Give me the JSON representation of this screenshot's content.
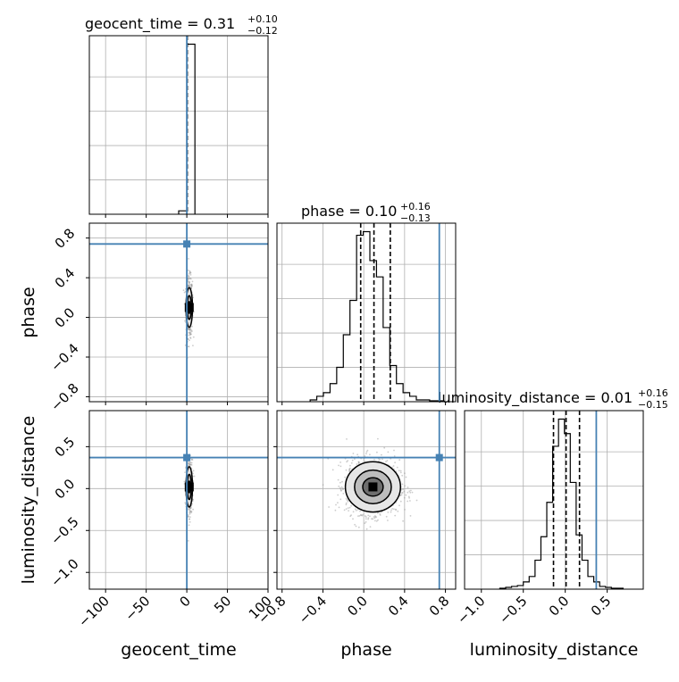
{
  "figure": {
    "panel_titles": {
      "geocent_time": {
        "prefix": "geocent_time = ",
        "value": "0.31",
        "plus": "+0.10",
        "minus": "−0.12"
      },
      "phase": {
        "prefix": "phase = ",
        "value": "0.10",
        "plus": "+0.16",
        "minus": "−0.13"
      },
      "luminosity_distance": {
        "prefix": "luminosity_distance = ",
        "value": "0.01",
        "plus": "+0.16",
        "minus": "−0.15"
      }
    },
    "axis_labels": {
      "x_geocent_time": "geocent_time",
      "x_phase": "phase",
      "x_luminosity_distance": "luminosity_distance",
      "y_phase": "phase",
      "y_luminosity_distance": "luminosity_distance"
    },
    "colors": {
      "truth": "#4682b4",
      "hist": "#000000",
      "grid": "#b0b0b0",
      "points": "#9a9a9a"
    }
  },
  "chart_data": [
    {
      "type": "histogram",
      "panel": "geocent_time",
      "xlim": [
        -120,
        100
      ],
      "x_ticks": [
        "−100",
        "−50",
        "0",
        "50",
        "100"
      ],
      "x_tick_values": [
        -100,
        -50,
        0,
        50,
        100
      ],
      "bin_edges": [
        -10,
        0,
        10
      ],
      "counts": [
        0.02,
        1.0
      ],
      "quantiles": [
        0.19,
        0.31,
        0.41
      ],
      "truth": 0
    },
    {
      "type": "histogram",
      "panel": "phase",
      "xlim": [
        -0.85,
        0.9
      ],
      "x_ticks": [
        "−0.8",
        "−0.4",
        "0.0",
        "0.4",
        "0.8"
      ],
      "x_tick_values": [
        -0.8,
        -0.4,
        0.0,
        0.4,
        0.8
      ],
      "bin_edges": [
        -0.525,
        -0.46,
        -0.395,
        -0.33,
        -0.265,
        -0.2,
        -0.135,
        -0.07,
        -0.005,
        0.06,
        0.125,
        0.19,
        0.255,
        0.32,
        0.385,
        0.45,
        0.515,
        0.58,
        0.645,
        0.71,
        0.775
      ],
      "counts": [
        0.01,
        0.03,
        0.05,
        0.1,
        0.19,
        0.37,
        0.56,
        0.92,
        0.94,
        0.78,
        0.69,
        0.41,
        0.2,
        0.1,
        0.05,
        0.03,
        0.01,
        0.01,
        0.005,
        0.005
      ],
      "quantiles": [
        -0.03,
        0.1,
        0.26
      ],
      "truth": 0.74
    },
    {
      "type": "histogram",
      "panel": "luminosity_distance",
      "xlim": [
        -1.2,
        0.93
      ],
      "x_ticks": [
        "−1.0",
        "−0.5",
        "0.0",
        "0.5"
      ],
      "x_tick_values": [
        -1.0,
        -0.5,
        0.0,
        0.5
      ],
      "bin_edges": [
        -0.78,
        -0.71,
        -0.64,
        -0.57,
        -0.5,
        -0.43,
        -0.36,
        -0.29,
        -0.22,
        -0.15,
        -0.08,
        -0.01,
        0.06,
        0.13,
        0.2,
        0.27,
        0.34,
        0.41,
        0.48,
        0.55,
        0.62,
        0.69
      ],
      "counts": [
        0.005,
        0.01,
        0.015,
        0.02,
        0.04,
        0.07,
        0.16,
        0.29,
        0.48,
        0.79,
        0.94,
        0.86,
        0.59,
        0.3,
        0.16,
        0.07,
        0.04,
        0.015,
        0.01,
        0.005,
        0.005
      ],
      "quantiles": [
        -0.14,
        0.01,
        0.17
      ],
      "truth": 0.37
    },
    {
      "type": "scatter",
      "panel": "geocent_time vs phase",
      "xlim": [
        -120,
        100
      ],
      "ylim": [
        -0.85,
        0.95
      ],
      "y_ticks": [
        "−0.8",
        "−0.4",
        "0.0",
        "0.4",
        "0.8"
      ],
      "y_tick_values": [
        -0.8,
        -0.4,
        0.0,
        0.4,
        0.8
      ],
      "center": [
        3,
        0.1
      ],
      "spread": [
        2,
        0.15
      ],
      "contour_levels": [
        {
          "rx": 4,
          "ry": 0.2
        },
        {
          "rx": 2.5,
          "ry": 0.12
        },
        {
          "rx": 1.2,
          "ry": 0.06
        }
      ],
      "truth": [
        0,
        0.74
      ]
    },
    {
      "type": "scatter",
      "panel": "geocent_time vs luminosity_distance",
      "xlim": [
        -120,
        100
      ],
      "ylim": [
        -1.2,
        0.93
      ],
      "y_ticks": [
        "−1.0",
        "−0.5",
        "0.0",
        "0.5"
      ],
      "y_tick_values": [
        -1.0,
        -0.5,
        0.0,
        0.5
      ],
      "center": [
        3,
        0.02
      ],
      "spread": [
        2,
        0.16
      ],
      "contour_levels": [
        {
          "rx": 4,
          "ry": 0.24
        },
        {
          "rx": 2.5,
          "ry": 0.15
        },
        {
          "rx": 1.2,
          "ry": 0.07
        }
      ],
      "truth": [
        0,
        0.37
      ]
    },
    {
      "type": "scatter",
      "panel": "phase vs luminosity_distance",
      "xlim": [
        -0.85,
        0.9
      ],
      "ylim": [
        -1.2,
        0.93
      ],
      "center": [
        0.09,
        0.02
      ],
      "spread": [
        0.13,
        0.16
      ],
      "contour_levels": [
        {
          "rx": 0.27,
          "ry": 0.3
        },
        {
          "rx": 0.18,
          "ry": 0.2
        },
        {
          "rx": 0.1,
          "ry": 0.11
        }
      ],
      "truth": [
        0.74,
        0.37
      ]
    }
  ]
}
